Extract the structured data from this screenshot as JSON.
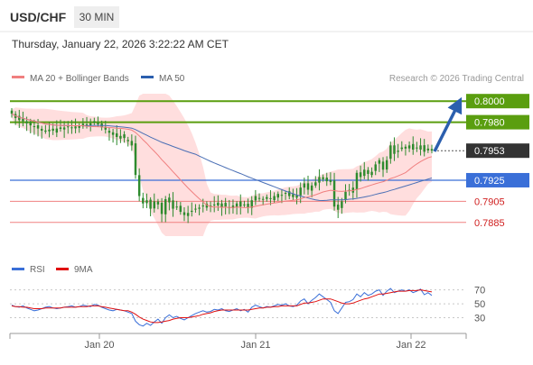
{
  "header": {
    "symbol": "USD/CHF",
    "timeframe": "30 MIN",
    "datetime": "Thursday, January 22, 2026 3:22:22 AM CET"
  },
  "legend": {
    "ma20": "MA 20 + Bollinger Bands",
    "ma50": "MA 50",
    "credit": "Research © 2026 Trading Central",
    "rsi": "RSI",
    "rsi_ma": "9MA"
  },
  "colors": {
    "candle": "#2e8b2e",
    "ma20": "#f07f7f",
    "ma50": "#4a6fb5",
    "bollinger": "#ffd3d3",
    "resistance": "#5a9e0f",
    "pivot": "#3a6fd8",
    "support": "#f08080",
    "arrow": "#2b5fae",
    "rsi": "#3a6fd8",
    "rsi_ma": "#e01010"
  },
  "chart_data": [
    {
      "type": "candlestick",
      "price_range": [
        0.7872,
        0.8007
      ],
      "levels": [
        {
          "value": 0.8,
          "label": "0.8000",
          "kind": "resistance"
        },
        {
          "value": 0.798,
          "label": "0.7980",
          "kind": "resistance"
        },
        {
          "value": 0.7953,
          "label": "0.7953",
          "kind": "current"
        },
        {
          "value": 0.7925,
          "label": "0.7925",
          "kind": "pivot"
        },
        {
          "value": 0.7905,
          "label": "0.7905",
          "kind": "support"
        },
        {
          "value": 0.7885,
          "label": "0.7885",
          "kind": "support"
        }
      ],
      "x_ticks": [
        "Jan 20",
        "Jan 21",
        "Jan 22"
      ],
      "close": [
        0.7988,
        0.7984,
        0.7982,
        0.7981,
        0.7979,
        0.7977,
        0.7976,
        0.7974,
        0.7972,
        0.7971,
        0.7973,
        0.7972,
        0.7974,
        0.7975,
        0.7975,
        0.7976,
        0.7975,
        0.7976,
        0.7977,
        0.7976,
        0.7978,
        0.7979,
        0.7981,
        0.7978,
        0.7975,
        0.7973,
        0.797,
        0.7968,
        0.7966,
        0.7967,
        0.7965,
        0.7962,
        0.7958,
        0.793,
        0.791,
        0.7903,
        0.7906,
        0.7898,
        0.7905,
        0.7902,
        0.7893,
        0.7907,
        0.7904,
        0.7898,
        0.79,
        0.7895,
        0.7892,
        0.7894,
        0.7896,
        0.7898,
        0.7899,
        0.7901,
        0.7899,
        0.79,
        0.7902,
        0.7901,
        0.7903,
        0.79,
        0.7899,
        0.7901,
        0.7903,
        0.79,
        0.7902,
        0.7899,
        0.7906,
        0.791,
        0.7908,
        0.7907,
        0.7909,
        0.7908,
        0.791,
        0.7912,
        0.7911,
        0.7913,
        0.791,
        0.7909,
        0.7911,
        0.7918,
        0.7922,
        0.7916,
        0.792,
        0.7923,
        0.7928,
        0.7926,
        0.7924,
        0.7925,
        0.79,
        0.7897,
        0.7905,
        0.7914,
        0.7915,
        0.7918,
        0.7932,
        0.7928,
        0.7935,
        0.7931,
        0.7933,
        0.794,
        0.7944,
        0.7935,
        0.7944,
        0.7958,
        0.795,
        0.7953,
        0.7956,
        0.7955,
        0.7958,
        0.7954,
        0.7956,
        0.7958,
        0.7952,
        0.7955,
        0.7953
      ]
    },
    {
      "type": "line",
      "series": [
        {
          "name": "RSI"
        },
        {
          "name": "9MA"
        }
      ],
      "y_ticks": [
        70,
        50,
        30
      ],
      "ylim": [
        10,
        85
      ],
      "rsi": [
        48,
        46,
        45,
        47,
        44,
        42,
        40,
        41,
        43,
        45,
        46,
        44,
        43,
        44,
        45,
        46,
        47,
        45,
        46,
        48,
        47,
        46,
        49,
        48,
        45,
        43,
        41,
        40,
        42,
        41,
        40,
        38,
        36,
        25,
        20,
        18,
        22,
        19,
        24,
        28,
        22,
        30,
        34,
        30,
        32,
        29,
        27,
        30,
        33,
        36,
        38,
        40,
        38,
        39,
        42,
        41,
        43,
        40,
        39,
        41,
        43,
        40,
        42,
        38,
        45,
        48,
        46,
        44,
        46,
        45,
        47,
        49,
        48,
        50,
        47,
        46,
        48,
        54,
        57,
        50,
        55,
        59,
        64,
        60,
        56,
        52,
        40,
        36,
        44,
        52,
        53,
        56,
        64,
        60,
        66,
        62,
        64,
        68,
        70,
        62,
        68,
        72,
        66,
        68,
        70,
        68,
        70,
        66,
        68,
        71,
        63,
        66,
        62
      ],
      "rsi_ma": [
        47,
        46,
        46,
        45,
        45,
        44,
        43,
        43,
        43,
        44,
        44,
        44,
        44,
        44,
        45,
        45,
        45,
        45,
        46,
        46,
        46,
        47,
        47,
        47,
        46,
        45,
        44,
        43,
        42,
        41,
        40,
        40,
        38,
        35,
        31,
        28,
        26,
        24,
        23,
        23,
        24,
        25,
        26,
        28,
        29,
        30,
        30,
        30,
        31,
        32,
        33,
        35,
        36,
        37,
        39,
        40,
        41,
        41,
        41,
        41,
        41,
        41,
        41,
        41,
        42,
        43,
        44,
        44,
        45,
        45,
        46,
        46,
        47,
        47,
        47,
        47,
        47,
        49,
        51,
        51,
        52,
        53,
        55,
        57,
        57,
        57,
        55,
        53,
        51,
        50,
        50,
        51,
        53,
        55,
        57,
        58,
        60,
        62,
        64,
        64,
        65,
        66,
        67,
        68,
        68,
        68,
        69,
        69,
        69,
        70,
        69,
        68,
        67
      ]
    }
  ]
}
